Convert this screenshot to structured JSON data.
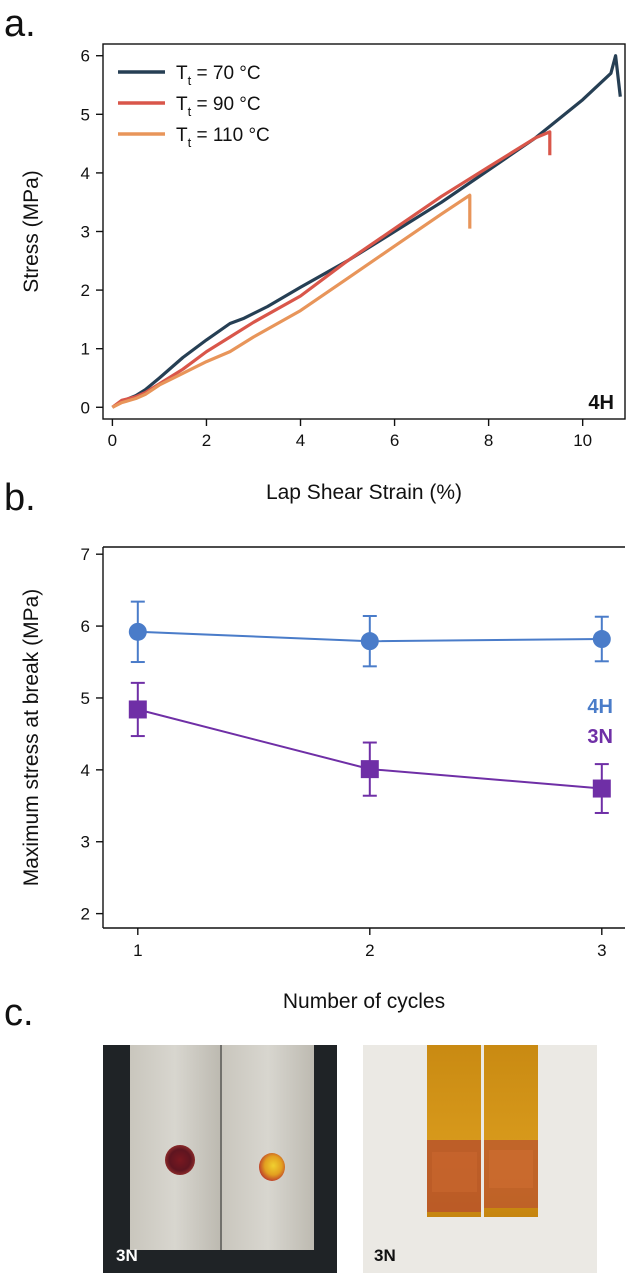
{
  "panel_labels": {
    "a": "a.",
    "b": "b.",
    "c": "c."
  },
  "chart_data": [
    {
      "type": "line",
      "xlabel": "Lap Shear Strain (%)",
      "ylabel": "Stress (MPa)",
      "xlim": [
        -0.2,
        10.9
      ],
      "ylim": [
        -0.2,
        6.2
      ],
      "xticks": [
        0,
        2,
        4,
        6,
        8,
        10
      ],
      "yticks": [
        0,
        1,
        2,
        3,
        4,
        5,
        6
      ],
      "grid": false,
      "legend_position": "top-left",
      "annotation": "4H",
      "series": [
        {
          "name_main": "T",
          "name_sub": "t",
          "name_rest": " = 70 °C",
          "color": "#263f54",
          "points": [
            [
              0,
              0
            ],
            [
              0.2,
              0.1
            ],
            [
              0.5,
              0.2
            ],
            [
              0.7,
              0.3
            ],
            [
              1,
              0.5
            ],
            [
              1.5,
              0.85
            ],
            [
              2,
              1.15
            ],
            [
              2.5,
              1.43
            ],
            [
              2.8,
              1.52
            ],
            [
              3.3,
              1.72
            ],
            [
              4,
              2.05
            ],
            [
              5,
              2.5
            ],
            [
              6,
              3.0
            ],
            [
              7,
              3.5
            ],
            [
              8,
              4.05
            ],
            [
              9,
              4.6
            ],
            [
              10,
              5.25
            ],
            [
              10.6,
              5.7
            ],
            [
              10.7,
              6.0
            ],
            [
              10.8,
              5.3
            ]
          ]
        },
        {
          "name_main": "T",
          "name_sub": "t",
          "name_rest": " = 90 °C",
          "color": "#d9564a",
          "points": [
            [
              0,
              0
            ],
            [
              0.2,
              0.12
            ],
            [
              0.5,
              0.18
            ],
            [
              0.7,
              0.25
            ],
            [
              1,
              0.4
            ],
            [
              1.5,
              0.65
            ],
            [
              2,
              0.95
            ],
            [
              2.5,
              1.2
            ],
            [
              3,
              1.45
            ],
            [
              4,
              1.9
            ],
            [
              5,
              2.5
            ],
            [
              6,
              3.05
            ],
            [
              7,
              3.6
            ],
            [
              8,
              4.1
            ],
            [
              8.5,
              4.35
            ],
            [
              9,
              4.6
            ],
            [
              9.3,
              4.7
            ],
            [
              9.3,
              4.3
            ]
          ]
        },
        {
          "name_main": "T",
          "name_sub": "t",
          "name_rest": " = 110 °C",
          "color": "#e8955a",
          "points": [
            [
              0,
              0
            ],
            [
              0.2,
              0.08
            ],
            [
              0.5,
              0.15
            ],
            [
              0.7,
              0.22
            ],
            [
              1,
              0.38
            ],
            [
              1.5,
              0.58
            ],
            [
              2,
              0.78
            ],
            [
              2.5,
              0.95
            ],
            [
              3,
              1.2
            ],
            [
              4,
              1.65
            ],
            [
              5,
              2.2
            ],
            [
              6,
              2.75
            ],
            [
              7,
              3.3
            ],
            [
              7.6,
              3.62
            ],
            [
              7.6,
              3.05
            ]
          ]
        }
      ]
    },
    {
      "type": "line",
      "xlabel": "Number of cycles",
      "ylabel": "Maximum stress at break  (MPa)",
      "xlim": [
        0.85,
        3.1
      ],
      "ylim": [
        1.8,
        7.1
      ],
      "xticks": [
        1,
        2,
        3
      ],
      "yticks": [
        2,
        3,
        4,
        5,
        6,
        7
      ],
      "grid": false,
      "legend_position": "right",
      "series": [
        {
          "name": "4H",
          "color": "#4a7cc9",
          "marker": "circle",
          "x": [
            1,
            2,
            3
          ],
          "values": [
            5.92,
            5.79,
            5.82
          ],
          "errors": [
            0.42,
            0.35,
            0.31
          ]
        },
        {
          "name": "3N",
          "color": "#6f2fa6",
          "marker": "square",
          "x": [
            1,
            2,
            3
          ],
          "values": [
            4.84,
            4.01,
            3.74
          ],
          "errors": [
            0.37,
            0.37,
            0.34
          ]
        }
      ]
    }
  ],
  "photos": {
    "left_tag": "3N",
    "right_tag": "3N"
  }
}
